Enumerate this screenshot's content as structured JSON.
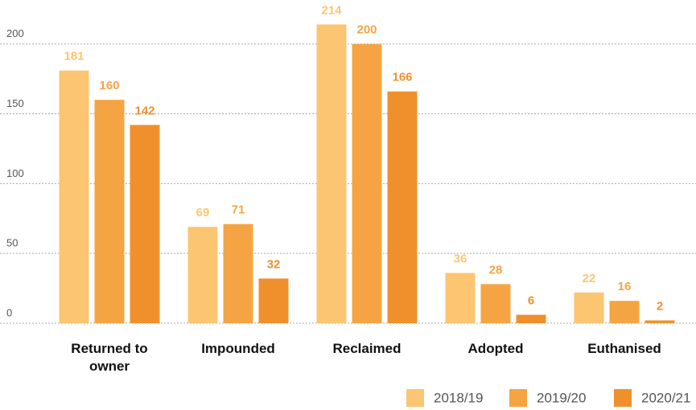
{
  "chart_data": {
    "type": "bar",
    "categories": [
      "Returned to owner",
      "Impounded",
      "Reclaimed",
      "Adopted",
      "Euthanised"
    ],
    "series": [
      {
        "name": "2018/19",
        "color": "#fcc572",
        "values": [
          181,
          69,
          214,
          36,
          22
        ]
      },
      {
        "name": "2019/20",
        "color": "#f5a443",
        "values": [
          160,
          71,
          200,
          28,
          16
        ]
      },
      {
        "name": "2020/21",
        "color": "#f0902c",
        "values": [
          142,
          32,
          166,
          6,
          2
        ]
      }
    ],
    "ylim": [
      0,
      220
    ],
    "yticks": [
      0,
      50,
      100,
      150,
      200
    ],
    "grid": true,
    "legend": "bottom-right"
  }
}
